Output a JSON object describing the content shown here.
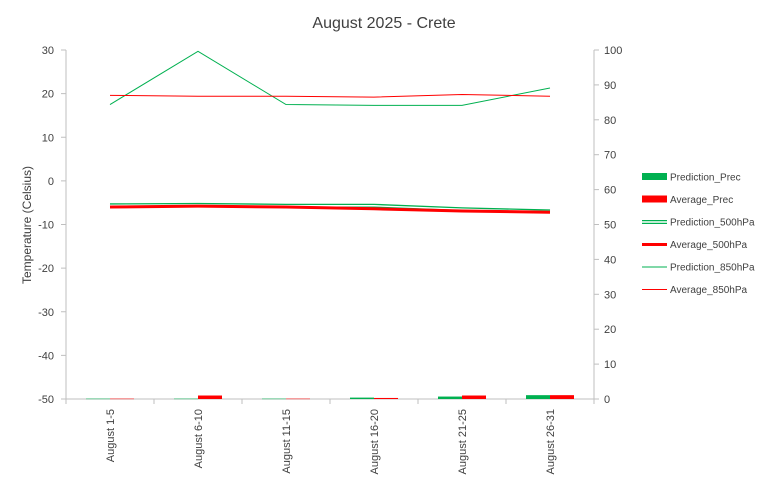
{
  "chart_data": {
    "type": "line",
    "title": "August 2025 - Crete",
    "ylabel": "Temperature  (Celsius)",
    "y2label": "",
    "categories": [
      "August 1-5",
      "August 6-10",
      "August 11-15",
      "August 16-20",
      "August 21-25",
      "August 26-31"
    ],
    "ylim": [
      -50,
      30
    ],
    "y2lim": [
      0,
      100
    ],
    "yticks": [
      "30",
      "20",
      "10",
      "0",
      "-10",
      "-20",
      "-30",
      "-40",
      "-50"
    ],
    "y2ticks": [
      "100",
      "90",
      "80",
      "70",
      "60",
      "50",
      "40",
      "30",
      "20",
      "10",
      "0"
    ],
    "grid": false,
    "legend_position": "right",
    "series": [
      {
        "name": "Prediction_Prec",
        "kind": "bar",
        "axis": "right",
        "color": "#00b050",
        "values": [
          0.1,
          0.1,
          0.1,
          0.4,
          0.7,
          1.1
        ]
      },
      {
        "name": "Average_Prec",
        "kind": "bar",
        "axis": "right",
        "color": "#ff0000",
        "values": [
          0.1,
          1.0,
          0.1,
          0.3,
          1.0,
          1.1
        ]
      },
      {
        "name": "Prediction_500hPa",
        "kind": "line-double",
        "axis": "left",
        "color": "#00b050",
        "values": [
          -5.6,
          -5.5,
          -5.7,
          -5.7,
          -6.5,
          -7.0
        ]
      },
      {
        "name": "Average_500hPa",
        "kind": "line-thick",
        "axis": "left",
        "color": "#ff0000",
        "values": [
          -6.0,
          -5.8,
          -6.0,
          -6.4,
          -6.9,
          -7.2
        ]
      },
      {
        "name": "Prediction_850hPa",
        "kind": "line",
        "axis": "left",
        "color": "#00b050",
        "values": [
          17.5,
          29.7,
          17.5,
          17.3,
          17.3,
          21.3
        ]
      },
      {
        "name": "Average_850hPa",
        "kind": "line",
        "axis": "left",
        "color": "#ff0000",
        "values": [
          19.6,
          19.4,
          19.4,
          19.2,
          19.8,
          19.4
        ]
      }
    ]
  }
}
